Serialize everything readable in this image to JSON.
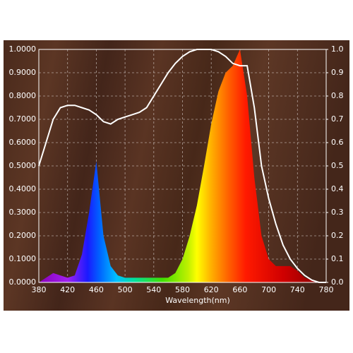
{
  "chart_data": {
    "type": "area-line",
    "x_label": "Wavelength(nm)",
    "xlim": [
      380,
      780
    ],
    "xticks": [
      380,
      420,
      460,
      500,
      540,
      580,
      620,
      660,
      700,
      740,
      780
    ],
    "ylim": [
      0,
      1
    ],
    "yticks": [
      {
        "value": 0,
        "label": "0.0000"
      },
      {
        "value": 0.1,
        "label": "0.1000"
      },
      {
        "value": 0.2,
        "label": "0.2000"
      },
      {
        "value": 0.3,
        "label": "0.3000"
      },
      {
        "value": 0.4,
        "label": "0.4000"
      },
      {
        "value": 0.5,
        "label": "0.5000"
      },
      {
        "value": 0.6,
        "label": "0.6000"
      },
      {
        "value": 0.7,
        "label": "0.7000"
      },
      {
        "value": 0.8,
        "label": "0.8000"
      },
      {
        "value": 0.9,
        "label": "0.9000"
      },
      {
        "value": 1,
        "label": "1.0000"
      }
    ],
    "y2lim": [
      0,
      1
    ],
    "y2ticks": [
      {
        "value": 0,
        "label": "0.0"
      },
      0.1,
      0.2,
      0.3,
      0.4,
      0.5,
      0.6,
      0.7,
      0.8,
      0.9,
      {
        "value": 1,
        "label": "1.0"
      }
    ],
    "grid": true,
    "x": [
      380,
      390,
      400,
      410,
      420,
      430,
      440,
      450,
      460,
      470,
      480,
      490,
      500,
      510,
      520,
      530,
      540,
      550,
      560,
      570,
      580,
      590,
      600,
      610,
      620,
      630,
      640,
      650,
      660,
      670,
      680,
      690,
      700,
      710,
      720,
      730,
      740,
      750,
      760,
      770,
      780
    ],
    "series": [
      {
        "kind": "area",
        "values": [
          0,
          0.02,
          0.04,
          0.03,
          0.02,
          0.03,
          0.12,
          0.3,
          0.52,
          0.2,
          0.07,
          0.03,
          0.02,
          0.02,
          0.02,
          0.02,
          0.02,
          0.02,
          0.02,
          0.04,
          0.1,
          0.2,
          0.33,
          0.5,
          0.68,
          0.82,
          0.9,
          0.93,
          1,
          0.8,
          0.45,
          0.2,
          0.1,
          0.07,
          0.07,
          0.07,
          0.05,
          0.02,
          0.01,
          0,
          0
        ]
      },
      {
        "kind": "line",
        "axis": "y2",
        "color": "#ffffff",
        "values": [
          0.5,
          0.6,
          0.7,
          0.75,
          0.76,
          0.76,
          0.75,
          0.74,
          0.72,
          0.69,
          0.68,
          0.7,
          0.71,
          0.72,
          0.73,
          0.75,
          0.8,
          0.85,
          0.9,
          0.94,
          0.97,
          0.99,
          1,
          1,
          1,
          0.99,
          0.97,
          0.94,
          0.93,
          0.93,
          0.75,
          0.5,
          0.36,
          0.25,
          0.16,
          0.1,
          0.06,
          0.03,
          0.01,
          0,
          0
        ]
      }
    ]
  }
}
